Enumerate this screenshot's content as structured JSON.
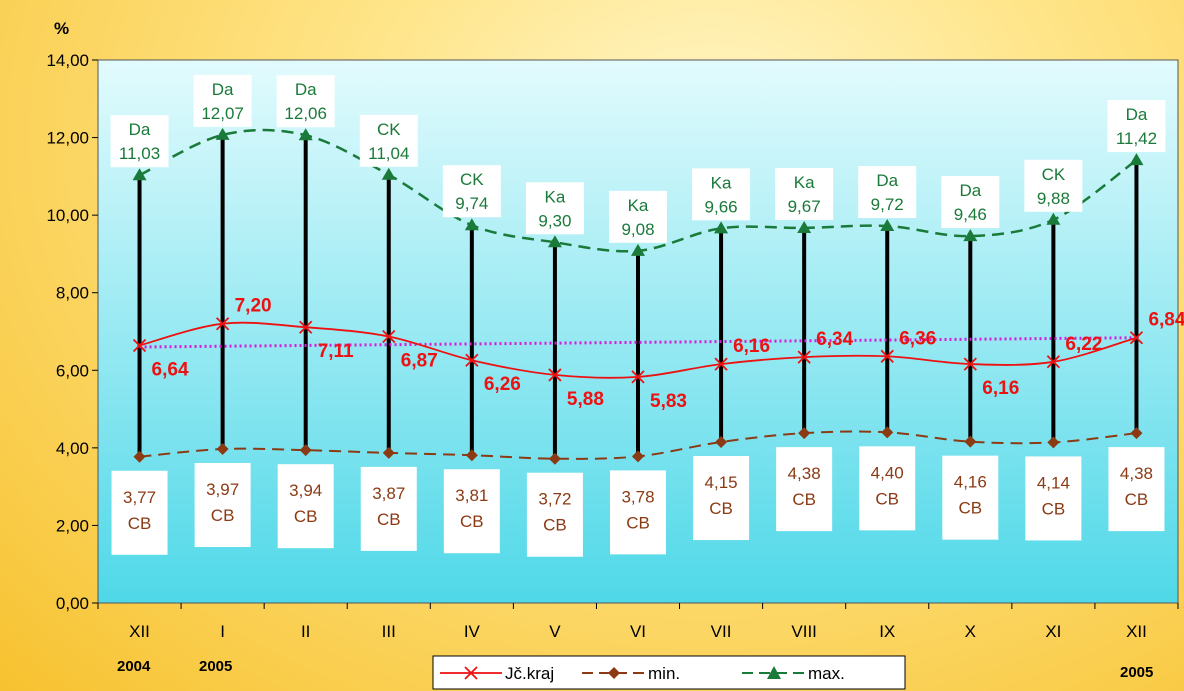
{
  "chart_data": {
    "type": "line",
    "ylabel": "%",
    "ylim": [
      0,
      14
    ],
    "yticks": [
      "0,00",
      "2,00",
      "4,00",
      "6,00",
      "8,00",
      "10,00",
      "12,00",
      "14,00"
    ],
    "categories": [
      "XII",
      "I",
      "II",
      "III",
      "IV",
      "V",
      "VI",
      "VII",
      "VIII",
      "IX",
      "X",
      "XI",
      "XII"
    ],
    "year_labels": {
      "start": "2004",
      "second": "2005",
      "end": "2005"
    },
    "series": [
      {
        "name": "Jč.kraj",
        "color": "#ee1111",
        "values": [
          6.64,
          7.2,
          7.11,
          6.87,
          6.26,
          5.88,
          5.83,
          6.16,
          6.34,
          6.36,
          6.16,
          6.22,
          6.84
        ],
        "labels": [
          "6,64",
          "7,20",
          "7,11",
          "6,87",
          "6,26",
          "5,88",
          "5,83",
          "6,16",
          "6,34",
          "6,36",
          "6,16",
          "6,22",
          "6,84"
        ]
      },
      {
        "name": "min.",
        "color": "#8b3a14",
        "values": [
          3.77,
          3.97,
          3.94,
          3.87,
          3.81,
          3.72,
          3.78,
          4.15,
          4.38,
          4.4,
          4.16,
          4.14,
          4.38
        ],
        "labels": [
          "3,77",
          "3,97",
          "3,94",
          "3,87",
          "3,81",
          "3,72",
          "3,78",
          "4,15",
          "4,38",
          "4,40",
          "4,16",
          "4,14",
          "4,38"
        ],
        "codes": [
          "CB",
          "CB",
          "CB",
          "CB",
          "CB",
          "CB",
          "CB",
          "CB",
          "CB",
          "CB",
          "CB",
          "CB",
          "CB"
        ]
      },
      {
        "name": "max.",
        "color": "#1a7a3a",
        "values": [
          11.03,
          12.07,
          12.06,
          11.04,
          9.74,
          9.3,
          9.08,
          9.66,
          9.67,
          9.72,
          9.46,
          9.88,
          11.42
        ],
        "labels": [
          "11,03",
          "12,07",
          "12,06",
          "11,04",
          "9,74",
          "9,30",
          "9,08",
          "9,66",
          "9,67",
          "9,72",
          "9,46",
          "9,88",
          "11,42"
        ],
        "codes": [
          "Da",
          "Da",
          "Da",
          "CK",
          "CK",
          "Ka",
          "Ka",
          "Ka",
          "Ka",
          "Da",
          "Da",
          "CK",
          "Da"
        ]
      }
    ],
    "trendline": {
      "color": "#d91ad9",
      "from": 6.6,
      "to": 6.84
    },
    "legend": {
      "placement": "bottom-center"
    },
    "grid": false,
    "plot_background": [
      "#4fd8e8",
      "#e2fbfd"
    ]
  }
}
